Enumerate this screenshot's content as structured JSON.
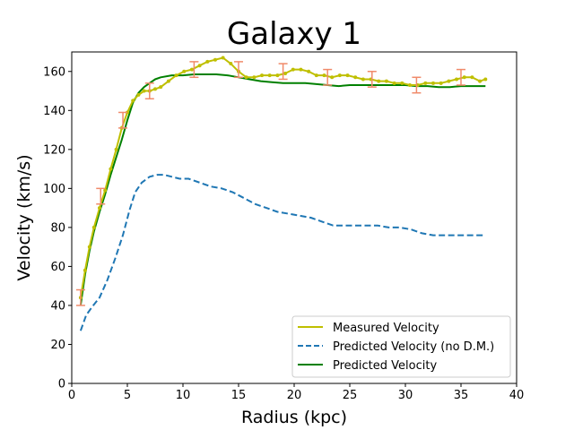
{
  "chart_data": {
    "type": "line",
    "title": "Galaxy 1",
    "xlabel": "Radius (kpc)",
    "ylabel": "Velocity (km/s)",
    "xlim": [
      0,
      40
    ],
    "ylim": [
      0,
      170
    ],
    "xticks": [
      0,
      5,
      10,
      15,
      20,
      25,
      30,
      35,
      40
    ],
    "yticks": [
      0,
      20,
      40,
      60,
      80,
      100,
      120,
      140,
      160
    ],
    "grid": false,
    "legend_position": "lower-right",
    "series": [
      {
        "name": "Measured Velocity",
        "style": "solid-with-markers",
        "color": "#bfbf00",
        "x": [
          0.8,
          1.2,
          1.6,
          2.0,
          2.5,
          3.0,
          3.5,
          4.0,
          4.5,
          5.0,
          5.5,
          6.0,
          6.5,
          7.0,
          7.5,
          8.0,
          8.7,
          9.4,
          10.1,
          10.8,
          11.5,
          12.2,
          12.9,
          13.6,
          14.3,
          15.0,
          15.7,
          16.4,
          17.1,
          17.8,
          18.5,
          19.2,
          19.9,
          20.6,
          21.3,
          22.0,
          22.7,
          23.4,
          24.1,
          24.8,
          25.5,
          26.2,
          26.9,
          27.6,
          28.3,
          29.0,
          29.7,
          30.4,
          31.1,
          31.8,
          32.5,
          33.2,
          33.9,
          34.6,
          35.3,
          36.0,
          36.7,
          37.2
        ],
        "y": [
          44,
          58,
          70,
          80,
          90,
          99,
          110,
          120,
          131,
          139,
          145,
          148,
          150,
          150,
          151,
          152,
          155,
          158,
          160,
          161,
          163,
          165,
          166,
          167,
          164,
          160,
          157,
          157,
          158,
          158,
          158,
          159,
          161,
          161,
          160,
          158,
          158,
          157,
          158,
          158,
          157,
          156,
          156,
          155,
          155,
          154,
          154,
          153,
          153,
          154,
          154,
          154,
          155,
          156,
          157,
          157,
          155,
          156
        ]
      },
      {
        "name": "Predicted Velocity (no D.M.)",
        "style": "dashed",
        "color": "#1f77b4",
        "x": [
          0.8,
          1.3,
          1.8,
          2.5,
          3.2,
          3.9,
          4.6,
          5.2,
          5.7,
          6.3,
          7.0,
          7.7,
          8.3,
          9.0,
          9.7,
          10.5,
          11.5,
          12.5,
          13.5,
          14.5,
          15.5,
          16.5,
          17.5,
          18.5,
          19.5,
          20.5,
          21.5,
          22.5,
          23.5,
          24.5,
          25.5,
          26.5,
          27.5,
          28.5,
          29.5,
          30.5,
          31.5,
          32.5,
          33.5,
          34.5,
          35.5,
          36.5,
          37.2
        ],
        "y": [
          27,
          35,
          39,
          44,
          53,
          64,
          76,
          89,
          98,
          103,
          106,
          107,
          107,
          106,
          105,
          105,
          103,
          101,
          100,
          98,
          95,
          92,
          90,
          88,
          87,
          86,
          85,
          83,
          81,
          81,
          81,
          81,
          81,
          80,
          80,
          79,
          77,
          76,
          76,
          76,
          76,
          76,
          76
        ]
      },
      {
        "name": "Predicted Velocity",
        "style": "solid",
        "color": "#008000",
        "x": [
          0.8,
          1.2,
          1.6,
          2.0,
          2.5,
          3.0,
          3.5,
          4.0,
          4.5,
          5.0,
          5.5,
          6.0,
          6.5,
          7.0,
          7.5,
          8.0,
          9.0,
          10.0,
          11.0,
          12.0,
          13.0,
          14.0,
          15.0,
          16.0,
          17.0,
          18.0,
          19.0,
          20.0,
          21.0,
          22.0,
          23.0,
          24.0,
          25.0,
          26.0,
          27.0,
          28.0,
          29.0,
          30.0,
          31.0,
          32.0,
          33.0,
          34.0,
          35.0,
          36.0,
          37.2
        ],
        "y": [
          40,
          56,
          68,
          78,
          88,
          97,
          107,
          116,
          125,
          135,
          144,
          149,
          152,
          154,
          156,
          157,
          158,
          158,
          158.5,
          158.5,
          158.5,
          158,
          157,
          156,
          155,
          154.5,
          154,
          154,
          154,
          153.5,
          153,
          152.5,
          153,
          153,
          153,
          153,
          153,
          153,
          152.5,
          152.5,
          152,
          152,
          152.5,
          152.5,
          152.5
        ]
      }
    ],
    "error_bars": {
      "color": "#f08a6a",
      "points": [
        {
          "x": 0.8,
          "y": 44,
          "err": 4
        },
        {
          "x": 2.6,
          "y": 96,
          "err": 4
        },
        {
          "x": 4.6,
          "y": 135,
          "err": 4
        },
        {
          "x": 7.0,
          "y": 150,
          "err": 4
        },
        {
          "x": 11.0,
          "y": 161,
          "err": 4
        },
        {
          "x": 15.0,
          "y": 161,
          "err": 4
        },
        {
          "x": 19.0,
          "y": 160,
          "err": 4
        },
        {
          "x": 23.0,
          "y": 157,
          "err": 4
        },
        {
          "x": 27.0,
          "y": 156,
          "err": 4
        },
        {
          "x": 31.0,
          "y": 153,
          "err": 4
        },
        {
          "x": 35.0,
          "y": 157,
          "err": 4
        }
      ]
    }
  }
}
